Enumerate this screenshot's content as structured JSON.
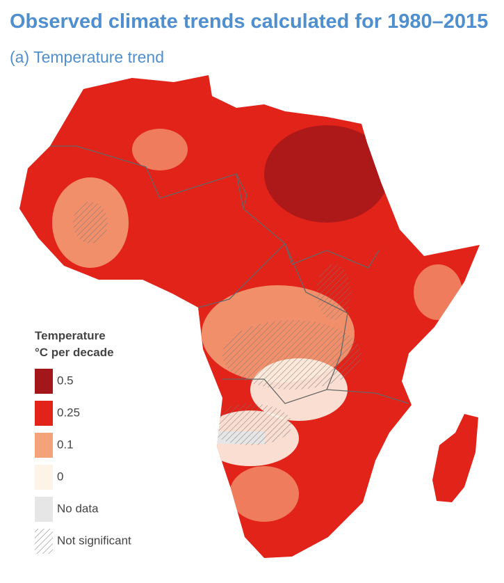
{
  "header": {
    "title": "Observed climate trends calculated for 1980–2015",
    "subtitle": "(a) Temperature trend"
  },
  "legend": {
    "title_lines": [
      "Temperature",
      "°C per decade"
    ],
    "items": [
      {
        "label": "0.5",
        "color": "#a3161a"
      },
      {
        "label": "0.25",
        "color": "#e2231a"
      },
      {
        "label": "0.1",
        "color": "#f4a27a"
      },
      {
        "label": "0",
        "color": "#fdf3e7"
      },
      {
        "label": "No data",
        "color": "#e6e6e6"
      },
      {
        "label": "Not significant",
        "pattern": "hatch"
      }
    ]
  }
}
